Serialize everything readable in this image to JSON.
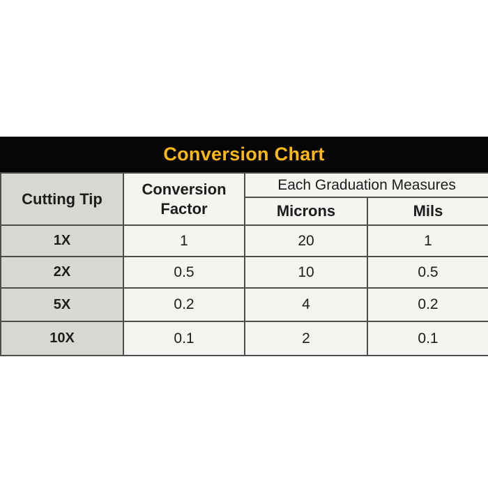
{
  "title_bar": {
    "title": "Conversion Chart",
    "background_color": "#060606",
    "text_color": "#FDB913"
  },
  "table": {
    "header": {
      "cutting_tip": "Cutting Tip",
      "conversion_factor_line1": "Conversion",
      "conversion_factor_line2": "Factor",
      "graduation_group": "Each Graduation Measures",
      "microns": "Microns",
      "mils": "Mils"
    },
    "rows": [
      {
        "tip": "1X",
        "factor": "1",
        "microns": "20",
        "mils": "1"
      },
      {
        "tip": "2X",
        "factor": "0.5",
        "microns": "10",
        "mils": "0.5"
      },
      {
        "tip": "5X",
        "factor": "0.2",
        "microns": "4",
        "mils": "0.2"
      },
      {
        "tip": "10X",
        "factor": "0.1",
        "microns": "2",
        "mils": "0.1"
      }
    ],
    "label_column_color": "#d8d8d2",
    "cell_color": "#f4f4f0",
    "border_color": "#4e4e4e"
  },
  "chart_data": {
    "type": "table",
    "title": "Conversion Chart",
    "columns": [
      "Cutting Tip",
      "Conversion Factor",
      "Each Graduation Measures - Microns",
      "Each Graduation Measures - Mils"
    ],
    "rows": [
      [
        "1X",
        "1",
        "20",
        "1"
      ],
      [
        "2X",
        "0.5",
        "10",
        "0.5"
      ],
      [
        "5X",
        "0.2",
        "4",
        "0.2"
      ],
      [
        "10X",
        "0.1",
        "2",
        "0.1"
      ]
    ]
  }
}
